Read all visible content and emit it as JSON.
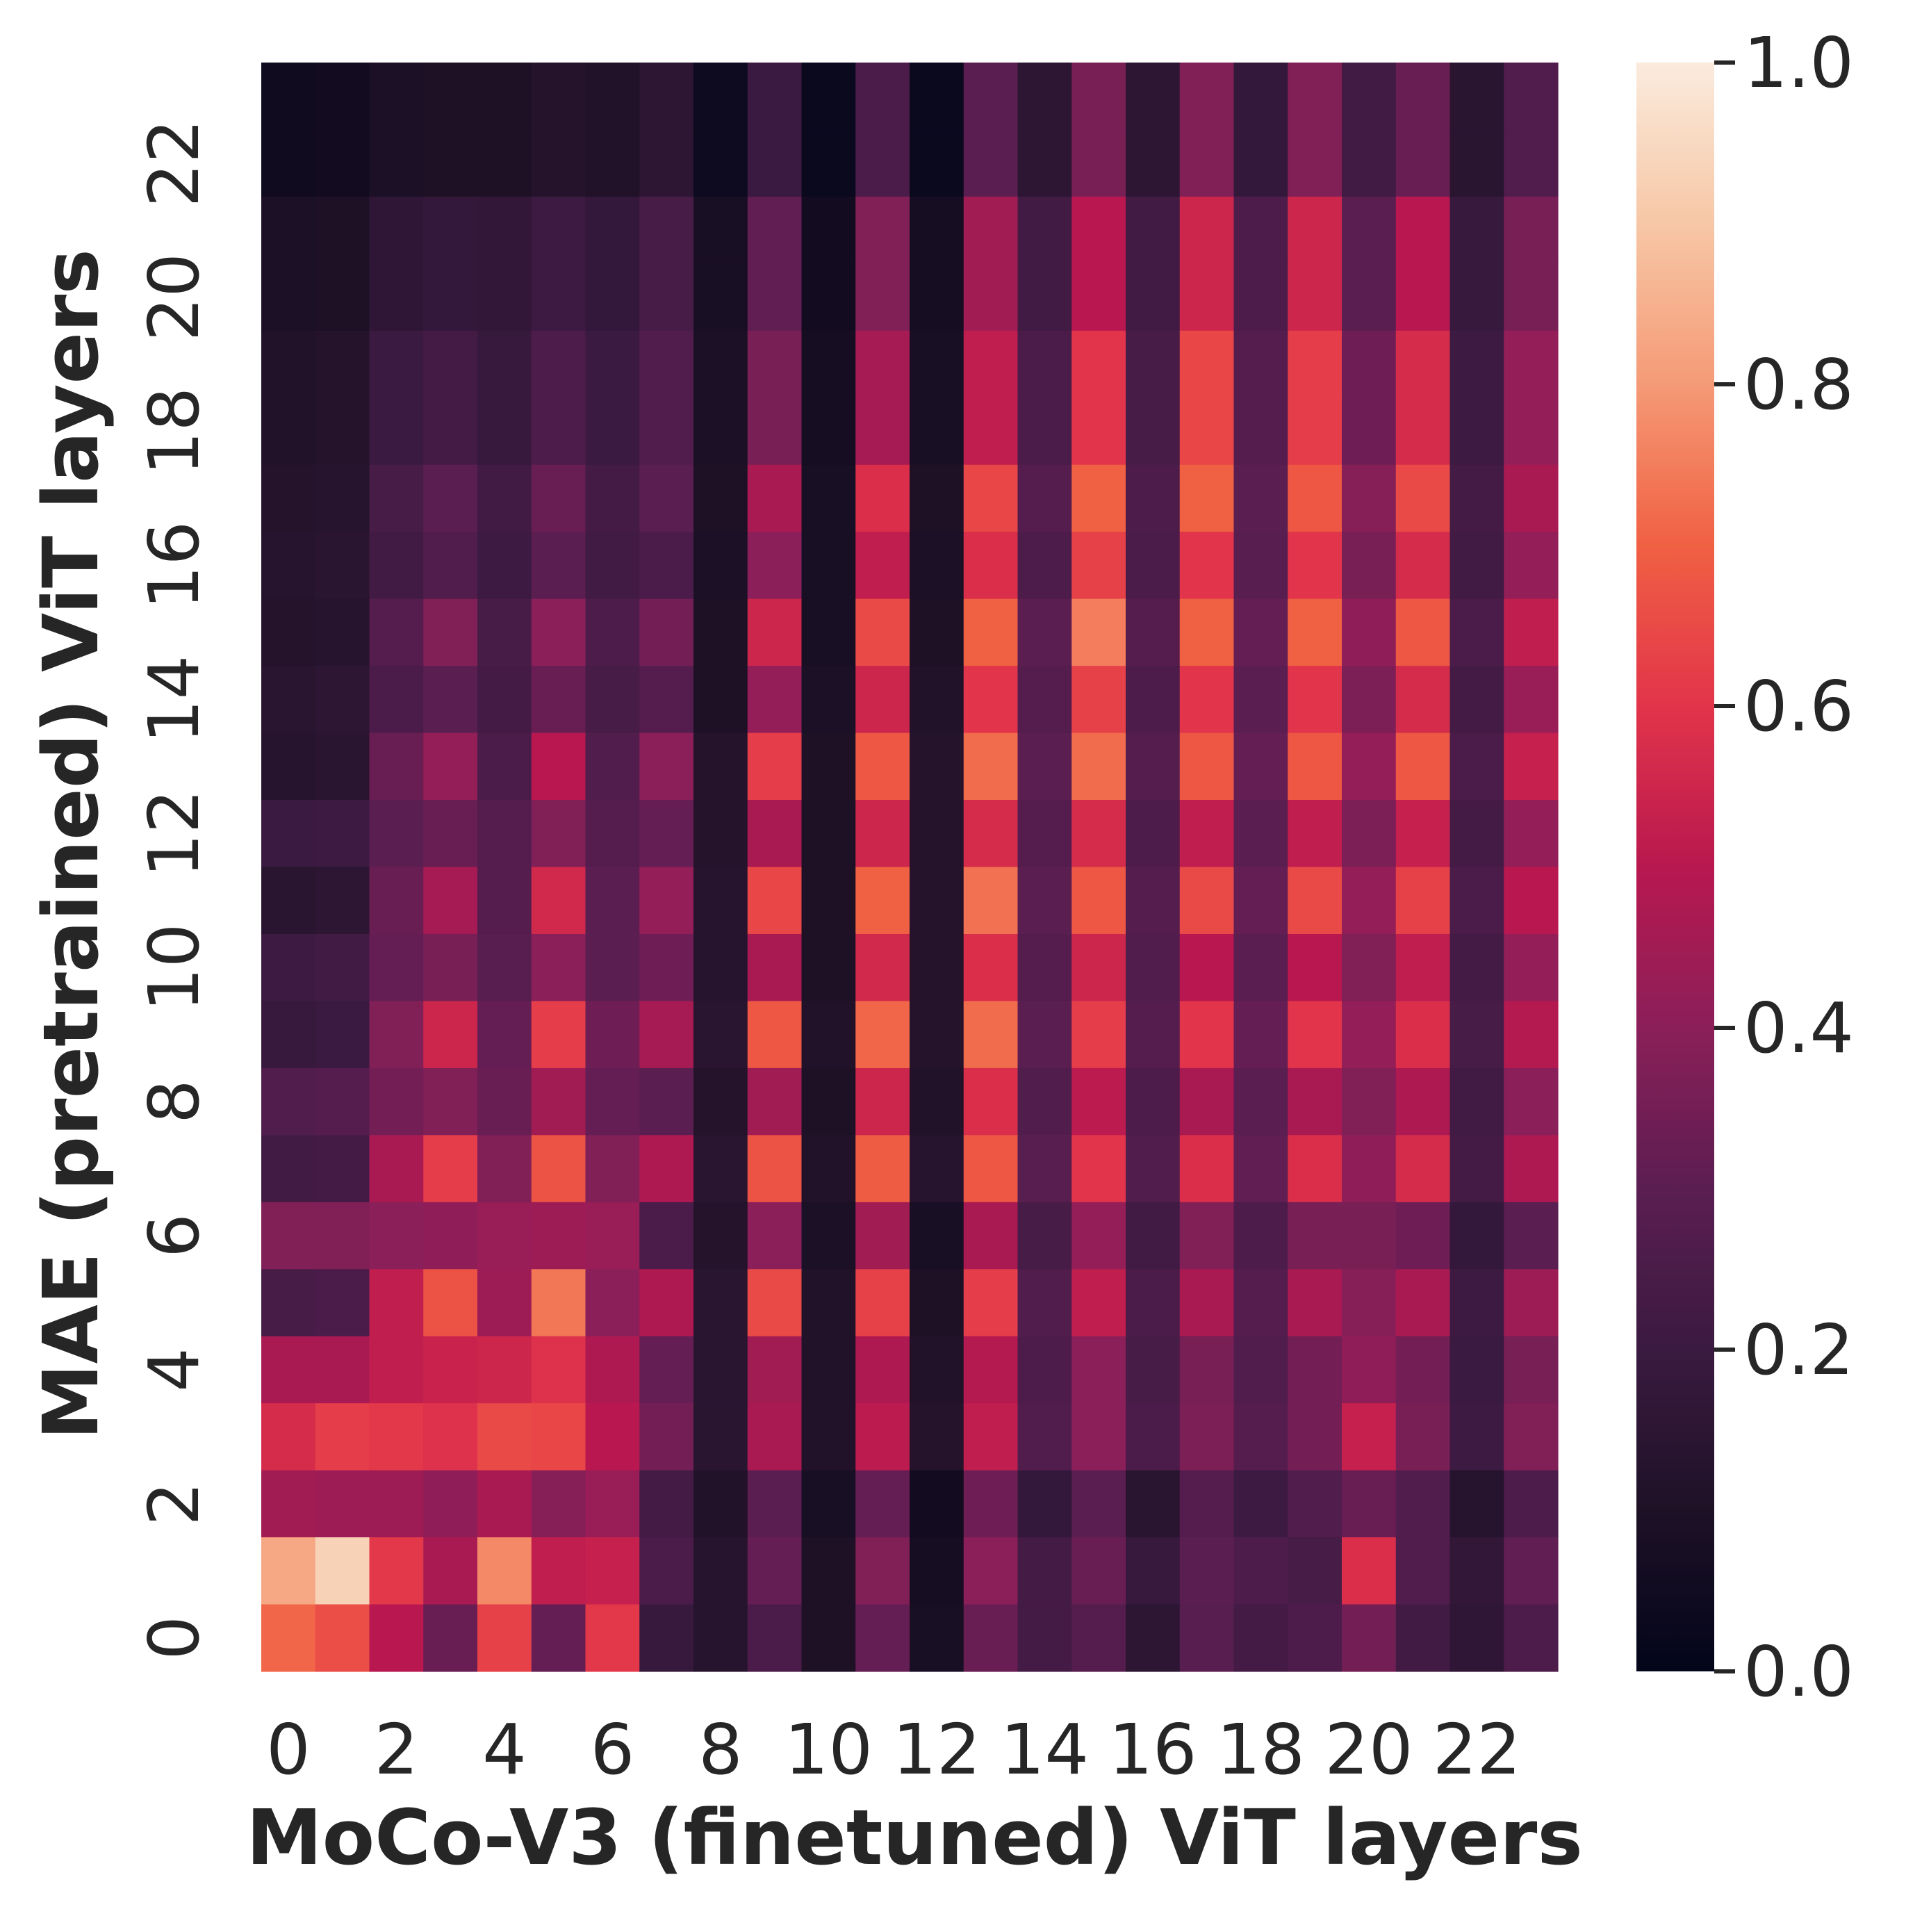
{
  "chart_data": {
    "type": "heatmap",
    "title": "",
    "xlabel": "MoCo-V3 (finetuned) ViT layers",
    "ylabel": "MAE (pretrained) ViT layers",
    "x_ticks": [
      "0",
      "2",
      "4",
      "6",
      "8",
      "10",
      "12",
      "14",
      "16",
      "18",
      "20",
      "22"
    ],
    "y_ticks": [
      "0",
      "2",
      "4",
      "6",
      "8",
      "10",
      "12",
      "14",
      "16",
      "18",
      "20",
      "22"
    ],
    "colorbar": {
      "range": [
        0.0,
        1.0
      ],
      "ticks": [
        "0.0",
        "0.2",
        "0.4",
        "0.6",
        "0.8",
        "1.0"
      ],
      "colormap": "rocket"
    },
    "grid": false,
    "n_rows": 24,
    "n_cols": 24,
    "row_order": "top row = MAE layer 23, bottom row = MAE layer 0",
    "values": [
      [
        0.05,
        0.06,
        0.09,
        0.1,
        0.1,
        0.12,
        0.11,
        0.15,
        0.04,
        0.2,
        0.03,
        0.25,
        0.03,
        0.3,
        0.15,
        0.36,
        0.15,
        0.38,
        0.18,
        0.38,
        0.22,
        0.33,
        0.14,
        0.27
      ],
      [
        0.05,
        0.06,
        0.09,
        0.1,
        0.1,
        0.12,
        0.11,
        0.15,
        0.04,
        0.2,
        0.03,
        0.25,
        0.03,
        0.3,
        0.15,
        0.36,
        0.15,
        0.38,
        0.18,
        0.38,
        0.22,
        0.33,
        0.14,
        0.27
      ],
      [
        0.09,
        0.1,
        0.16,
        0.18,
        0.17,
        0.21,
        0.18,
        0.24,
        0.08,
        0.31,
        0.06,
        0.38,
        0.07,
        0.45,
        0.22,
        0.5,
        0.22,
        0.55,
        0.26,
        0.55,
        0.3,
        0.5,
        0.19,
        0.36
      ],
      [
        0.09,
        0.1,
        0.16,
        0.18,
        0.17,
        0.21,
        0.18,
        0.24,
        0.08,
        0.31,
        0.06,
        0.38,
        0.07,
        0.45,
        0.22,
        0.5,
        0.22,
        0.55,
        0.26,
        0.55,
        0.3,
        0.5,
        0.19,
        0.36
      ],
      [
        0.11,
        0.12,
        0.2,
        0.23,
        0.19,
        0.26,
        0.2,
        0.27,
        0.09,
        0.36,
        0.07,
        0.46,
        0.08,
        0.52,
        0.25,
        0.6,
        0.24,
        0.64,
        0.28,
        0.62,
        0.34,
        0.57,
        0.21,
        0.42
      ],
      [
        0.11,
        0.12,
        0.2,
        0.23,
        0.19,
        0.26,
        0.2,
        0.27,
        0.09,
        0.36,
        0.07,
        0.46,
        0.08,
        0.52,
        0.25,
        0.6,
        0.24,
        0.64,
        0.28,
        0.62,
        0.34,
        0.57,
        0.21,
        0.42
      ],
      [
        0.12,
        0.13,
        0.24,
        0.3,
        0.22,
        0.33,
        0.23,
        0.3,
        0.1,
        0.47,
        0.08,
        0.58,
        0.1,
        0.64,
        0.28,
        0.7,
        0.26,
        0.7,
        0.3,
        0.68,
        0.39,
        0.65,
        0.23,
        0.47
      ],
      [
        0.13,
        0.14,
        0.22,
        0.27,
        0.21,
        0.3,
        0.22,
        0.25,
        0.09,
        0.4,
        0.08,
        0.52,
        0.09,
        0.58,
        0.26,
        0.63,
        0.25,
        0.6,
        0.29,
        0.6,
        0.36,
        0.57,
        0.22,
        0.42
      ],
      [
        0.12,
        0.13,
        0.28,
        0.38,
        0.24,
        0.4,
        0.26,
        0.35,
        0.1,
        0.55,
        0.08,
        0.65,
        0.1,
        0.7,
        0.3,
        0.75,
        0.28,
        0.7,
        0.32,
        0.7,
        0.41,
        0.68,
        0.25,
        0.52
      ],
      [
        0.14,
        0.15,
        0.25,
        0.3,
        0.23,
        0.33,
        0.24,
        0.28,
        0.1,
        0.42,
        0.09,
        0.55,
        0.11,
        0.6,
        0.28,
        0.63,
        0.26,
        0.6,
        0.3,
        0.6,
        0.37,
        0.57,
        0.23,
        0.43
      ],
      [
        0.13,
        0.14,
        0.33,
        0.42,
        0.25,
        0.5,
        0.27,
        0.4,
        0.12,
        0.62,
        0.1,
        0.68,
        0.12,
        0.72,
        0.3,
        0.72,
        0.28,
        0.68,
        0.32,
        0.68,
        0.42,
        0.68,
        0.25,
        0.53
      ],
      [
        0.2,
        0.21,
        0.3,
        0.33,
        0.28,
        0.38,
        0.28,
        0.32,
        0.12,
        0.47,
        0.1,
        0.55,
        0.12,
        0.57,
        0.28,
        0.57,
        0.26,
        0.52,
        0.3,
        0.52,
        0.37,
        0.53,
        0.23,
        0.42
      ],
      [
        0.14,
        0.15,
        0.33,
        0.46,
        0.28,
        0.56,
        0.3,
        0.42,
        0.13,
        0.64,
        0.1,
        0.7,
        0.12,
        0.73,
        0.3,
        0.68,
        0.28,
        0.65,
        0.32,
        0.65,
        0.42,
        0.63,
        0.25,
        0.5
      ],
      [
        0.21,
        0.22,
        0.32,
        0.36,
        0.29,
        0.4,
        0.3,
        0.34,
        0.13,
        0.47,
        0.1,
        0.56,
        0.12,
        0.58,
        0.28,
        0.55,
        0.27,
        0.5,
        0.3,
        0.5,
        0.38,
        0.52,
        0.23,
        0.42
      ],
      [
        0.19,
        0.2,
        0.38,
        0.55,
        0.32,
        0.62,
        0.34,
        0.46,
        0.14,
        0.68,
        0.11,
        0.71,
        0.12,
        0.72,
        0.3,
        0.62,
        0.28,
        0.6,
        0.32,
        0.6,
        0.42,
        0.58,
        0.24,
        0.49
      ],
      [
        0.27,
        0.28,
        0.35,
        0.38,
        0.33,
        0.45,
        0.32,
        0.3,
        0.12,
        0.45,
        0.1,
        0.55,
        0.11,
        0.58,
        0.27,
        0.51,
        0.26,
        0.47,
        0.3,
        0.47,
        0.38,
        0.48,
        0.22,
        0.4
      ],
      [
        0.22,
        0.23,
        0.47,
        0.62,
        0.38,
        0.67,
        0.38,
        0.48,
        0.14,
        0.67,
        0.11,
        0.69,
        0.13,
        0.68,
        0.29,
        0.6,
        0.27,
        0.58,
        0.31,
        0.58,
        0.41,
        0.57,
        0.23,
        0.48
      ],
      [
        0.38,
        0.38,
        0.4,
        0.41,
        0.43,
        0.44,
        0.43,
        0.25,
        0.12,
        0.4,
        0.09,
        0.45,
        0.08,
        0.47,
        0.24,
        0.42,
        0.22,
        0.38,
        0.26,
        0.36,
        0.36,
        0.34,
        0.18,
        0.3
      ],
      [
        0.24,
        0.25,
        0.52,
        0.67,
        0.44,
        0.74,
        0.4,
        0.48,
        0.14,
        0.65,
        0.11,
        0.63,
        0.1,
        0.62,
        0.27,
        0.52,
        0.25,
        0.47,
        0.28,
        0.47,
        0.39,
        0.47,
        0.21,
        0.44
      ],
      [
        0.47,
        0.47,
        0.52,
        0.54,
        0.55,
        0.59,
        0.48,
        0.32,
        0.14,
        0.45,
        0.11,
        0.48,
        0.11,
        0.49,
        0.26,
        0.4,
        0.24,
        0.36,
        0.27,
        0.35,
        0.41,
        0.35,
        0.2,
        0.36
      ],
      [
        0.57,
        0.62,
        0.61,
        0.59,
        0.65,
        0.64,
        0.5,
        0.35,
        0.14,
        0.47,
        0.11,
        0.51,
        0.12,
        0.52,
        0.27,
        0.4,
        0.25,
        0.37,
        0.28,
        0.35,
        0.53,
        0.36,
        0.21,
        0.38
      ],
      [
        0.45,
        0.44,
        0.44,
        0.41,
        0.47,
        0.39,
        0.43,
        0.23,
        0.11,
        0.3,
        0.08,
        0.32,
        0.06,
        0.34,
        0.18,
        0.3,
        0.14,
        0.28,
        0.21,
        0.27,
        0.33,
        0.27,
        0.13,
        0.26
      ],
      [
        0.83,
        0.93,
        0.61,
        0.47,
        0.77,
        0.52,
        0.53,
        0.25,
        0.13,
        0.32,
        0.1,
        0.38,
        0.07,
        0.4,
        0.23,
        0.33,
        0.19,
        0.3,
        0.26,
        0.24,
        0.58,
        0.27,
        0.17,
        0.31
      ],
      [
        0.71,
        0.66,
        0.5,
        0.33,
        0.63,
        0.32,
        0.61,
        0.19,
        0.13,
        0.25,
        0.1,
        0.32,
        0.08,
        0.33,
        0.23,
        0.28,
        0.15,
        0.29,
        0.23,
        0.26,
        0.35,
        0.22,
        0.16,
        0.26
      ]
    ]
  }
}
